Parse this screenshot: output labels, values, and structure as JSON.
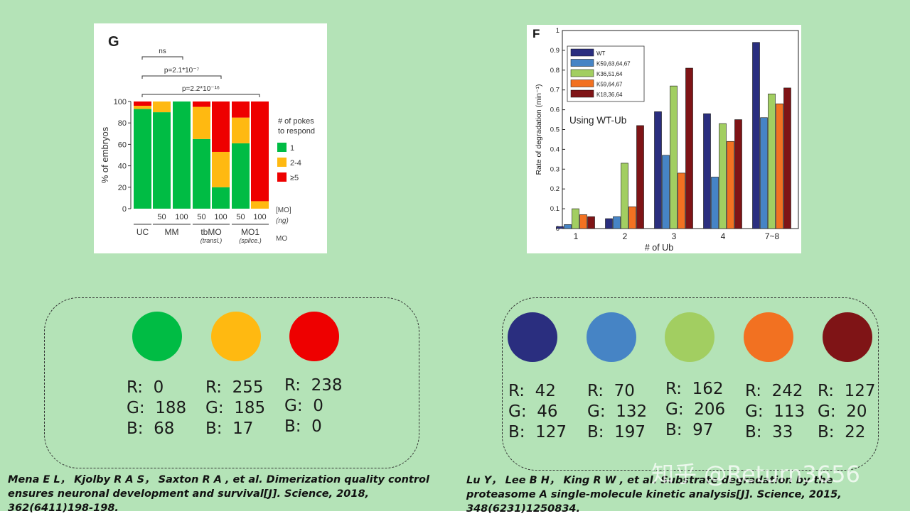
{
  "page": {
    "background": "#b4e3b7"
  },
  "chart_data": [
    {
      "type": "bar",
      "stacked": true,
      "panel_label": "G",
      "ylabel": "% of embryos",
      "ylim": [
        0,
        100
      ],
      "yticks": [
        "0",
        "20",
        "40",
        "60",
        "80",
        "100"
      ],
      "legend_title_line1": "# of pokes",
      "legend_title_line2": "to respond",
      "legend": [
        {
          "label": "1",
          "color": "#00bc44"
        },
        {
          "label": "2-4",
          "color": "#ffb911"
        },
        {
          "label": "≥5",
          "color": "#ee0000"
        }
      ],
      "categories": [
        "UC",
        "MM 50",
        "MM 100",
        "tbMO 50",
        "tbMO 100",
        "MO1 50",
        "MO1 100"
      ],
      "series": [
        {
          "name": "1",
          "values": [
            93,
            90,
            100,
            65,
            20,
            61,
            0
          ]
        },
        {
          "name": "2-4",
          "values": [
            3,
            10,
            0,
            30,
            33,
            24,
            7
          ]
        },
        {
          "name": "≥5",
          "values": [
            4,
            0,
            0,
            5,
            47,
            15,
            93
          ]
        }
      ],
      "dose_labels": [
        "50",
        "100",
        "50",
        "100",
        "50",
        "100"
      ],
      "group_labels": [
        {
          "name": "UC",
          "sub": ""
        },
        {
          "name": "MM",
          "sub": ""
        },
        {
          "name": "tbMO",
          "sub": "(transl.)"
        },
        {
          "name": "MO1",
          "sub": "(splice.)"
        }
      ],
      "axis_note_1": "[MO]",
      "axis_note_2": "(ng)",
      "axis_note_3": "MO",
      "significance": [
        {
          "label": "ns",
          "from": "UC",
          "to": "MM 100"
        },
        {
          "label": "p=2.1*10⁻⁷",
          "from": "UC",
          "to": "tbMO 100"
        },
        {
          "label": "p=2.2*10⁻¹⁶",
          "from": "UC",
          "to": "MO1 100"
        }
      ]
    },
    {
      "type": "bar",
      "panel_label": "F",
      "xlabel": "# of Ub",
      "ylabel": "Rate of degradation (min⁻¹)",
      "ylim": [
        0,
        1
      ],
      "yticks": [
        "0",
        "0.1",
        "0.2",
        "0.3",
        "0.4",
        "0.5",
        "0.6",
        "0.7",
        "0.8",
        "0.9",
        "1"
      ],
      "categories": [
        "1",
        "2",
        "3",
        "4",
        "7~8"
      ],
      "annotation": "Using WT-Ub",
      "series": [
        {
          "name": "WT",
          "color": "#2a2e7f",
          "values": [
            0.01,
            0.05,
            0.59,
            0.58,
            0.94
          ]
        },
        {
          "name": "K59,63,64,67",
          "color": "#4684c5",
          "values": [
            0.02,
            0.06,
            0.37,
            0.26,
            0.56
          ]
        },
        {
          "name": "K36,51,64",
          "color": "#a2ce61",
          "values": [
            0.1,
            0.33,
            0.72,
            0.53,
            0.68
          ]
        },
        {
          "name": "K59,64,67",
          "color": "#f27121",
          "values": [
            0.07,
            0.11,
            0.28,
            0.44,
            0.63
          ]
        },
        {
          "name": "K18,36,64",
          "color": "#7f1416",
          "values": [
            0.06,
            0.52,
            0.81,
            0.55,
            0.71
          ]
        }
      ]
    }
  ],
  "palette1": [
    {
      "color": "#00bc44",
      "r": "R:  0",
      "g": "G:  188",
      "b": "B:  68"
    },
    {
      "color": "#ffb911",
      "r": "R:  255",
      "g": "G:  185",
      "b": "B:  17"
    },
    {
      "color": "#ee0000",
      "r": "R:  238",
      "g": "G:  0",
      "b": "B:  0"
    }
  ],
  "palette2": [
    {
      "color": "#2a2e7f",
      "r": "R:  42",
      "g": "G:  46",
      "b": "B:  127"
    },
    {
      "color": "#4684c5",
      "r": "R:  70",
      "g": "G:  132",
      "b": "B:  197"
    },
    {
      "color": "#a2ce61",
      "r": "R:  162",
      "g": "G:  206",
      "b": "B:  97"
    },
    {
      "color": "#f27121",
      "r": "R:  242",
      "g": "G:  113",
      "b": "B:  33"
    },
    {
      "color": "#7f1416",
      "r": "R:  127",
      "g": "G:  20",
      "b": "B:  22"
    }
  ],
  "citations": {
    "left": "Mena E L， Kjolby R A S， Saxton R A , et al. Dimerization quality control ensures neuronal development and survival[J]. Science, 2018, 362(6411)198-198.",
    "right": "Lu Y， Lee B H， King R W , et al. Substrate degradation by the proteasome A single-molecule kinetic analysis[J]. Science, 2015, 348(6231)1250834."
  },
  "watermark": "知乎 @Return3656"
}
